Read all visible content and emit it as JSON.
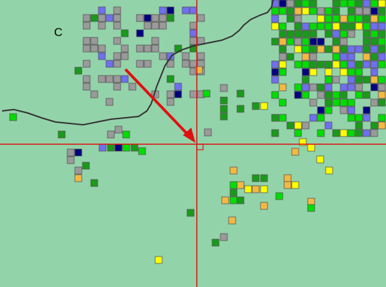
{
  "map": {
    "label": "C"
  }
}
